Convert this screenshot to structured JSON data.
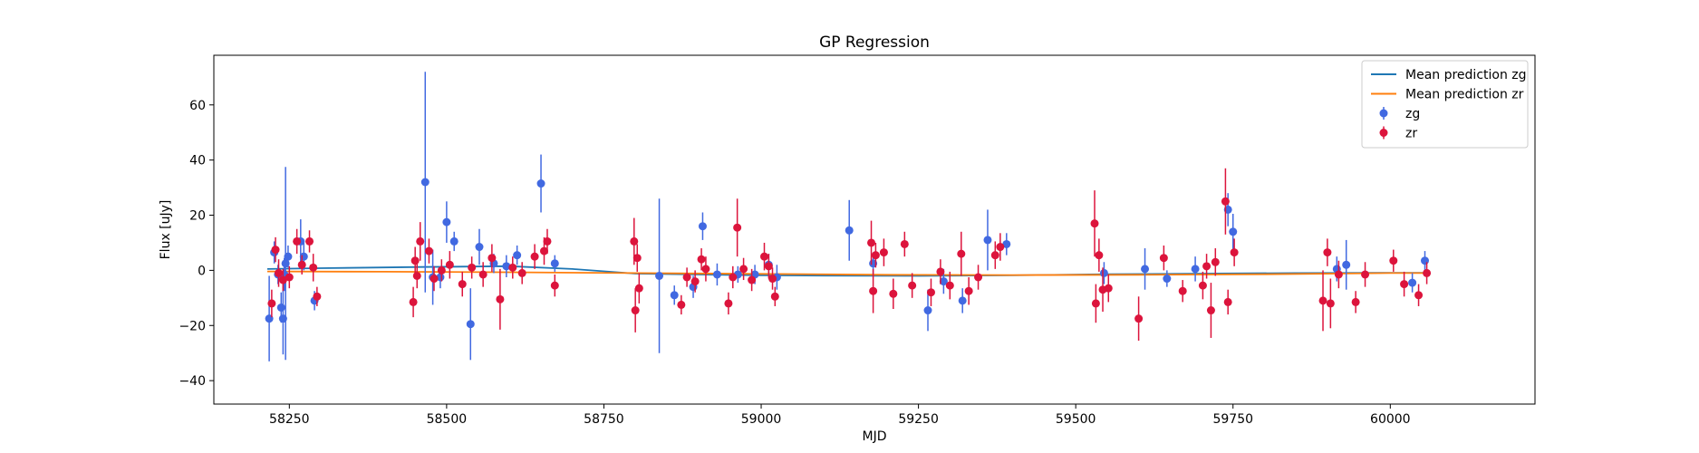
{
  "chart_data": {
    "type": "scatter",
    "title": "GP Regression",
    "xlabel": "MJD",
    "ylabel": "Flux [uJy]",
    "xlim": [
      58130,
      60230
    ],
    "ylim": [
      -48.5,
      78
    ],
    "xticks": [
      58250,
      58500,
      58750,
      59000,
      59250,
      59500,
      59750,
      60000
    ],
    "yticks": [
      -40,
      -20,
      0,
      20,
      40,
      60
    ],
    "legend_position": "top-right",
    "grid": false,
    "series": [
      {
        "name": "Mean prediction zg",
        "kind": "line",
        "color": "#1f77b4",
        "x": [
          58215,
          58300,
          58460,
          58600,
          58700,
          58800,
          58900,
          59000,
          59100,
          59250,
          59400,
          59550,
          59700,
          59850,
          60000,
          60060
        ],
        "y": [
          0.5,
          0.8,
          1.2,
          1.5,
          0.5,
          -1.2,
          -1.5,
          -1.8,
          -1.9,
          -2.0,
          -1.8,
          -1.4,
          -1.2,
          -1.0,
          -0.9,
          -0.9
        ]
      },
      {
        "name": "Mean prediction zr",
        "kind": "line",
        "color": "#ff7f0e",
        "x": [
          58215,
          58400,
          58600,
          58800,
          59000,
          59200,
          59400,
          59600,
          59800,
          60000,
          60060
        ],
        "y": [
          -0.4,
          -0.5,
          -0.7,
          -1.0,
          -1.3,
          -1.6,
          -1.7,
          -1.6,
          -1.4,
          -1.0,
          -1.0
        ]
      },
      {
        "name": "zg",
        "kind": "errorbar",
        "color": "#4169e1",
        "x": [
          58218,
          58226,
          58232,
          58237,
          58240,
          58242,
          58244,
          58248,
          58268,
          58273,
          58290,
          58466,
          58478,
          58490,
          58500,
          58512,
          58538,
          58552,
          58575,
          58595,
          58612,
          58650,
          58672,
          58838,
          58862,
          58892,
          58907,
          58930,
          58963,
          58990,
          59012,
          59025,
          59140,
          59178,
          59265,
          59290,
          59320,
          59360,
          59390,
          59545,
          59610,
          59645,
          59690,
          59742,
          59750,
          59915,
          59930,
          60035,
          60055
        ],
        "y": [
          -17.5,
          6.5,
          -1.5,
          -13.5,
          -17.5,
          -1.5,
          2.5,
          5.0,
          10.5,
          5.0,
          -11.0,
          32.0,
          -2.5,
          -2.5,
          17.5,
          10.5,
          -19.5,
          8.5,
          2.5,
          1.5,
          5.5,
          31.5,
          2.5,
          -2.0,
          -9.0,
          -6.0,
          16.0,
          -1.5,
          -1.5,
          -1.5,
          2.0,
          -2.5,
          14.5,
          2.5,
          -14.5,
          -4.0,
          -11.0,
          11.0,
          9.5,
          -1.0,
          0.5,
          -3.0,
          0.5,
          22.0,
          14.0,
          0.5,
          2.0,
          -4.5,
          3.5
        ],
        "err": [
          15.5,
          4.0,
          3.5,
          5.5,
          13.0,
          6.0,
          35.0,
          4.0,
          8.0,
          5.0,
          3.5,
          40.0,
          10.0,
          4.0,
          7.5,
          3.5,
          13.0,
          6.5,
          3.5,
          4.0,
          3.5,
          10.5,
          3.0,
          28.0,
          3.5,
          4.0,
          5.0,
          4.0,
          3.0,
          3.5,
          4.0,
          4.5,
          11.0,
          4.0,
          7.5,
          4.5,
          4.5,
          11.0,
          4.0,
          4.0,
          7.5,
          3.0,
          4.5,
          6.0,
          6.5,
          4.5,
          9.0,
          3.5,
          3.5
        ]
      },
      {
        "name": "zr",
        "kind": "errorbar",
        "color": "#dc143c",
        "x": [
          58222,
          58228,
          58233,
          58240,
          58250,
          58262,
          58270,
          58282,
          58288,
          58294,
          58447,
          58450,
          58453,
          58458,
          58472,
          58480,
          58492,
          58505,
          58525,
          58540,
          58558,
          58572,
          58585,
          58605,
          58620,
          58640,
          58655,
          58660,
          58672,
          58798,
          58800,
          58803,
          58806,
          58873,
          58882,
          58895,
          58905,
          58912,
          58948,
          58955,
          58962,
          58972,
          58985,
          59005,
          59012,
          59018,
          59022,
          59175,
          59178,
          59182,
          59195,
          59210,
          59228,
          59240,
          59270,
          59285,
          59300,
          59318,
          59330,
          59345,
          59372,
          59380,
          59530,
          59532,
          59537,
          59543,
          59552,
          59600,
          59640,
          59670,
          59702,
          59708,
          59715,
          59722,
          59738,
          59742,
          59752,
          59893,
          59900,
          59905,
          59918,
          59945,
          59960,
          60005,
          60022,
          60045,
          60058
        ],
        "y": [
          -12.0,
          7.5,
          -1.0,
          -3.5,
          -2.5,
          10.5,
          2.0,
          10.5,
          1.0,
          -9.5,
          -11.5,
          3.5,
          -2.0,
          10.5,
          7.0,
          -3.0,
          0.0,
          2.0,
          -5.0,
          1.0,
          -1.5,
          4.5,
          -10.5,
          1.0,
          -1.0,
          5.0,
          7.0,
          10.5,
          -5.5,
          10.5,
          -14.5,
          4.5,
          -6.5,
          -12.5,
          -2.5,
          -4.0,
          4.0,
          0.5,
          -12.0,
          -2.5,
          15.5,
          0.5,
          -3.5,
          5.0,
          1.5,
          -3.0,
          -9.5,
          10.0,
          -7.5,
          5.5,
          6.5,
          -8.5,
          9.5,
          -5.5,
          -8.0,
          -0.5,
          -5.5,
          6.0,
          -7.5,
          -2.5,
          5.5,
          8.5,
          17.0,
          -12.0,
          5.5,
          -7.0,
          -6.5,
          -17.5,
          4.5,
          -7.5,
          -5.5,
          1.5,
          -14.5,
          3.0,
          25.0,
          -11.5,
          6.5,
          -11.0,
          6.5,
          -12.0,
          -1.5,
          -11.5,
          -1.5,
          3.5,
          -5.0,
          -9.0,
          -1.0
        ],
        "err": [
          5.0,
          4.5,
          5.0,
          4.0,
          4.0,
          4.5,
          3.5,
          4.0,
          5.0,
          3.5,
          5.5,
          5.0,
          4.5,
          7.0,
          4.5,
          4.5,
          4.0,
          5.0,
          4.5,
          4.0,
          4.5,
          5.0,
          11.0,
          4.0,
          4.0,
          4.5,
          5.0,
          4.5,
          4.0,
          8.5,
          8.0,
          5.0,
          5.5,
          3.5,
          3.5,
          4.0,
          4.0,
          4.5,
          4.0,
          4.0,
          10.5,
          4.0,
          4.0,
          5.0,
          4.5,
          4.0,
          3.5,
          8.0,
          8.0,
          4.5,
          5.0,
          5.5,
          4.5,
          4.5,
          5.0,
          4.5,
          5.0,
          8.0,
          5.0,
          4.5,
          5.0,
          5.0,
          12.0,
          7.0,
          6.0,
          8.0,
          5.0,
          8.0,
          4.5,
          4.0,
          5.0,
          4.5,
          10.0,
          5.0,
          12.0,
          4.5,
          5.0,
          11.0,
          5.0,
          9.0,
          5.0,
          4.0,
          4.5,
          4.0,
          4.5,
          4.0,
          4.0
        ]
      }
    ]
  }
}
